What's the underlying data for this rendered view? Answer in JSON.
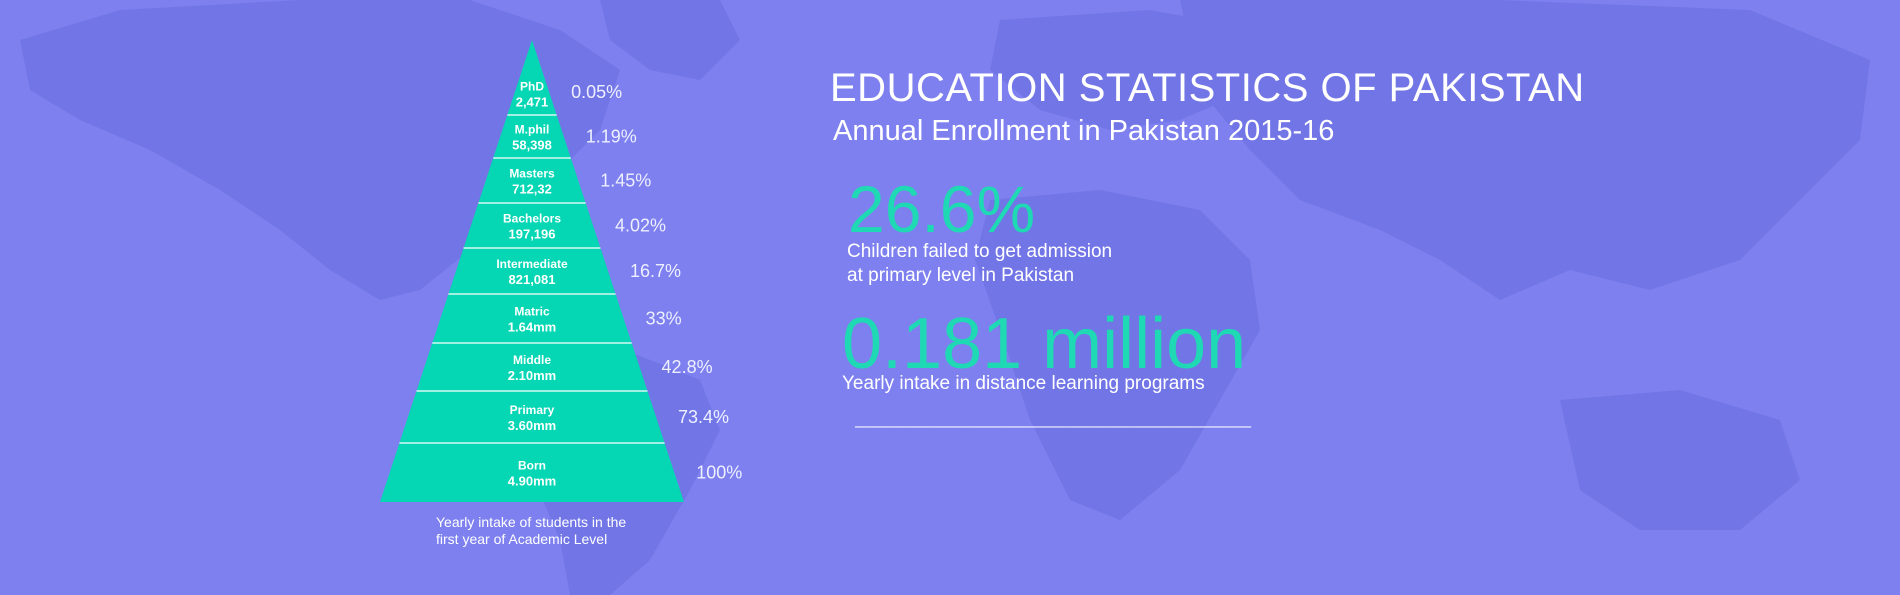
{
  "colors": {
    "background": "#7d80ee",
    "map": "#7275e6",
    "pyramid": "#05d6b4",
    "accent_text": "#1fd8b4"
  },
  "header": {
    "title": "EDUCATION STATISTICS OF PAKISTAN",
    "subtitle": "Annual Enrollment in Pakistan 2015-16"
  },
  "stats": [
    {
      "value": "26.6%",
      "description_line1": "Children failed to get admission",
      "description_line2": "at primary level in Pakistan"
    },
    {
      "value": "0.181 million",
      "description_line1": "Yearly intake in distance learning programs"
    }
  ],
  "divider": "______________________________",
  "chart_data": {
    "type": "pyramid",
    "caption_line1": "Yearly intake of students in the",
    "caption_line2": "first year of Academic Level",
    "levels": [
      {
        "name": "PhD",
        "value": "2,471",
        "percent": "0.05%"
      },
      {
        "name": "M.phil",
        "value": "58,398",
        "percent": "1.19%"
      },
      {
        "name": "Masters",
        "value": "712,32",
        "percent": "1.45%"
      },
      {
        "name": "Bachelors",
        "value": "197,196",
        "percent": "4.02%"
      },
      {
        "name": "Intermediate",
        "value": "821,081",
        "percent": "16.7%"
      },
      {
        "name": "Matric",
        "value": "1.64mm",
        "percent": "33%"
      },
      {
        "name": "Middle",
        "value": "2.10mm",
        "percent": "42.8%"
      },
      {
        "name": "Primary",
        "value": "3.60mm",
        "percent": "73.4%"
      },
      {
        "name": "Born",
        "value": "4.90mm",
        "percent": "100%"
      }
    ]
  }
}
